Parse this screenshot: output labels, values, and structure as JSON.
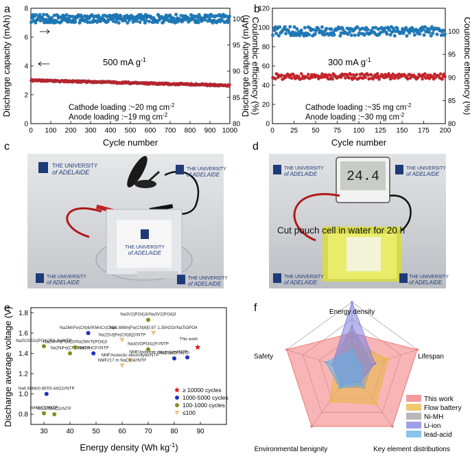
{
  "panel_labels": {
    "a": "a",
    "b": "b",
    "c": "c",
    "d": "d",
    "e": "e",
    "f": "f"
  },
  "chart_data": [
    {
      "id": "a",
      "type": "scatter",
      "xlabel": "Cycle number",
      "ylabel": "Discharge capacity (mAh)",
      "y2label": "Coulombic efficiency (%)",
      "xlim": [
        0,
        1000
      ],
      "ylim": [
        0,
        8
      ],
      "y2lim": [
        80,
        102
      ],
      "xticks": [
        "0",
        "100",
        "200",
        "300",
        "400",
        "500",
        "600",
        "700",
        "800",
        "900",
        "1000"
      ],
      "yticks": [
        "0",
        "2",
        "4",
        "6",
        "8"
      ],
      "y2ticks": [
        "80",
        "85",
        "90",
        "95",
        "100"
      ],
      "rate_label": "500 mA g",
      "rate_sup": "-1",
      "annotations": [
        "Cathode loading :~20 mg cm",
        "Anode loading :~19 mg cm"
      ],
      "annotation_sup": "-2",
      "series": [
        {
          "color": "#1f7fbf",
          "axis": "right",
          "mean": 100.0,
          "spread": 0.8
        },
        {
          "color": "#e02020",
          "axis": "left",
          "start": 3.0,
          "end": 2.65
        }
      ]
    },
    {
      "id": "b",
      "type": "scatter",
      "xlabel": "Cycle number",
      "ylabel": "Discharge capacity (mAh)",
      "y2label": "Coulombic efficiency (%)",
      "xlim": [
        0,
        200
      ],
      "ylim": [
        0,
        120
      ],
      "y2lim": [
        80,
        105
      ],
      "xticks": [
        "0",
        "25",
        "50",
        "75",
        "100",
        "125",
        "150",
        "175",
        "200"
      ],
      "yticks": [
        "0",
        "20",
        "40",
        "60",
        "80",
        "100",
        "120"
      ],
      "y2ticks": [
        "80",
        "85",
        "90",
        "95",
        "100"
      ],
      "rate_label": "300 mA g",
      "rate_sup": "-1",
      "annotations": [
        "Cathode loading :~35 mg cm",
        "Anode loading :~30 mg cm"
      ],
      "annotation_sup": "-2",
      "series": [
        {
          "color": "#1f7fbf",
          "axis": "right",
          "mean": 100.0,
          "spread": 1.0
        },
        {
          "color": "#e02020",
          "axis": "left",
          "mean": 49,
          "spread": 3
        }
      ]
    },
    {
      "id": "e",
      "type": "scatter",
      "xlabel": "Energy density (Wh kg",
      "xlabel_sup": "-1",
      "xlabel_end": ")",
      "ylabel": "Discharge average voltage (V)",
      "xlim": [
        25,
        100
      ],
      "ylim": [
        0.7,
        1.85
      ],
      "xticks": [
        "30",
        "40",
        "50",
        "60",
        "70",
        "80",
        "90"
      ],
      "yticks": [
        "0.8",
        "1.0",
        "1.2",
        "1.4",
        "1.6",
        "1.8"
      ],
      "legend": [
        {
          "label": "≥ 10000 cycles",
          "color": "#d62020",
          "marker": "star"
        },
        {
          "label": "1000-5000 cycles",
          "color": "#1f2fbf",
          "marker": "circle"
        },
        {
          "label": "100-1000 cycles",
          "color": "#8a8a1a",
          "marker": "circle"
        },
        {
          "label": "≤100",
          "color": "#f0c080",
          "marker": "triangle"
        }
      ],
      "points": [
        {
          "x": 89,
          "y": 1.46,
          "cls": 0,
          "label": "This work"
        },
        {
          "x": 85,
          "y": 1.36,
          "cls": 1,
          "label": "NMF//polymer electrolyte//NTP"
        },
        {
          "x": 47,
          "y": 1.6,
          "cls": 1,
          "label": "Na2MnFe(CN)6//KMnCr(CN)6"
        },
        {
          "x": 49,
          "y": 1.4,
          "cls": 1,
          "label": "NaCuHCF//NTP"
        },
        {
          "x": 31,
          "y": 1.0,
          "cls": 1,
          "label": "Na0.66Mn0.66Ti0.44O2//NTP"
        },
        {
          "x": 80,
          "y": 1.35,
          "cls": 1,
          "label": "NaCoHCF//NTP"
        },
        {
          "x": 70,
          "y": 1.73,
          "cls": 2,
          "label": "Na3V2(PO4)3//Na3V2(PO4)3"
        },
        {
          "x": 30,
          "y": 1.47,
          "cls": 2,
          "label": "Na3V2O2x(PO4)2F3-2x//NTP"
        },
        {
          "x": 40,
          "y": 1.4,
          "cls": 2,
          "label": "Na2NiFe(CN)6//NTP"
        },
        {
          "x": 42,
          "y": 1.46,
          "cls": 2,
          "label": "Na2MnTi(PO4)3//Na2MnTi(PO4)3"
        },
        {
          "x": 70,
          "y": 1.44,
          "cls": 2,
          "label": "Na3(VOPO4)2F//NTP"
        },
        {
          "x": 30,
          "y": 0.81,
          "cls": 2,
          "label": "NaMnO2//NTP"
        },
        {
          "x": 34,
          "y": 0.8,
          "cls": 2,
          "label": "K0.27MnO2//NTP"
        },
        {
          "x": 60,
          "y": 1.53,
          "cls": 3,
          "label": "Na2Zn3[Fe(CN)6]2//NTP"
        },
        {
          "x": 72,
          "y": 1.6,
          "cls": 3,
          "label": "Na1.88Mn[Fe(CN)6]0.97·1.35H2O//NaTiOPO4"
        },
        {
          "x": 63,
          "y": 1.33,
          "cls": 3,
          "label": "NMF//eutectic electrolyte//NTP"
        },
        {
          "x": 60,
          "y": 1.28,
          "cls": 3,
          "label": "NMF//17 m NaClO4//NTP"
        }
      ]
    },
    {
      "id": "f",
      "type": "radar",
      "axes": [
        "Energy density",
        "Lifespan",
        "Key element distributions",
        "Environmental benignity",
        "Safety"
      ],
      "series": [
        {
          "name": "This work",
          "color": "#f07878",
          "values": [
            0.55,
            1.0,
            1.0,
            1.0,
            1.0
          ]
        },
        {
          "name": "Flow battery",
          "color": "#e8b840",
          "values": [
            0.4,
            0.55,
            0.6,
            0.55,
            0.25
          ]
        },
        {
          "name": "Ni-MH",
          "color": "#a0a0a0",
          "values": [
            0.65,
            0.3,
            0.3,
            0.3,
            0.3
          ]
        },
        {
          "name": "Li-ion",
          "color": "#8080e0",
          "values": [
            1.0,
            0.35,
            0.2,
            0.25,
            0.3
          ]
        },
        {
          "name": "lead-acid",
          "color": "#60b0e8",
          "values": [
            0.3,
            0.15,
            0.25,
            0.3,
            0.4
          ]
        }
      ]
    }
  ],
  "photos": {
    "c": {
      "logo": [
        "THE UNIVERSITY",
        "of ADELAIDE"
      ]
    },
    "d": {
      "logo": [
        "THE UNIVERSITY",
        "of ADELAIDE"
      ],
      "caption": "Cut pouch cell in water for 20 h",
      "lcd": "24.4"
    }
  }
}
